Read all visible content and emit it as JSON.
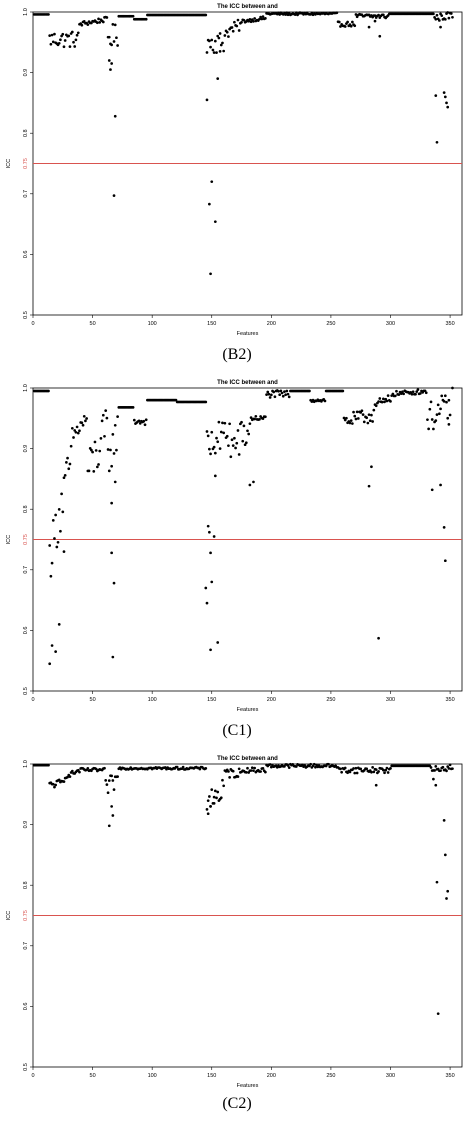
{
  "chart_data": [
    {
      "type": "scatter",
      "panel_label": "(B2)",
      "title": "The ICC between      and",
      "xlabel": "Features",
      "ylabel": "ICC",
      "xlim": [
        0,
        360
      ],
      "ylim": [
        0.5,
        1.0
      ],
      "xticks": [
        0,
        50,
        100,
        150,
        200,
        250,
        300,
        350
      ],
      "yticks": [
        0.5,
        0.6,
        0.7,
        0.8,
        0.9,
        1.0
      ],
      "ytick_labels": [
        "0.5",
        "0.6",
        "0.7",
        "0.8",
        "0.9",
        "1.0"
      ],
      "reference_line": {
        "y": 0.75,
        "label": "0.75",
        "color": "#d9534f"
      },
      "marker_color": "#000000",
      "segments": [
        {
          "x": [
            1,
            13
          ],
          "y": [
            0.996,
            0.996
          ]
        },
        {
          "x": [
            14,
            38
          ],
          "y": [
            0.955,
            0.955
          ],
          "jitter": 0.014
        },
        {
          "x": [
            39,
            62
          ],
          "y": [
            0.98,
            0.988
          ],
          "jitter": 0.004
        },
        {
          "x": [
            63,
            71
          ],
          "y": [
            0.96,
            0.96
          ],
          "jitter": 0.02
        },
        {
          "x": [
            72,
            84
          ],
          "y": [
            0.993,
            0.993
          ]
        },
        {
          "x": [
            85,
            95
          ],
          "y": [
            0.988,
            0.988
          ]
        },
        {
          "x": [
            96,
            145
          ],
          "y": [
            0.995,
            0.995
          ]
        },
        {
          "x": [
            146,
            160
          ],
          "y": [
            0.95,
            0.95
          ],
          "jitter": 0.018
        },
        {
          "x": [
            161,
            175
          ],
          "y": [
            0.965,
            0.98
          ],
          "jitter": 0.01
        },
        {
          "x": [
            176,
            195
          ],
          "y": [
            0.985,
            0.99
          ],
          "jitter": 0.003
        },
        {
          "x": [
            196,
            255
          ],
          "y": [
            0.997,
            0.997
          ],
          "jitter": 0.002
        },
        {
          "x": [
            256,
            270
          ],
          "y": [
            0.98,
            0.98
          ],
          "jitter": 0.004
        },
        {
          "x": [
            271,
            298
          ],
          "y": [
            0.993,
            0.993
          ],
          "jitter": 0.004
        },
        {
          "x": [
            299,
            336
          ],
          "y": [
            0.997,
            0.997
          ]
        },
        {
          "x": [
            337,
            352
          ],
          "y": [
            0.99,
            0.995
          ],
          "jitter": 0.006
        }
      ],
      "points": [
        [
          64,
          0.92
        ],
        [
          65,
          0.905
        ],
        [
          66,
          0.915
        ],
        [
          69,
          0.828
        ],
        [
          68,
          0.697
        ],
        [
          146,
          0.855
        ],
        [
          148,
          0.683
        ],
        [
          150,
          0.72
        ],
        [
          153,
          0.654
        ],
        [
          149,
          0.568
        ],
        [
          155,
          0.89
        ],
        [
          157,
          0.935
        ],
        [
          338,
          0.862
        ],
        [
          339,
          0.785
        ],
        [
          345,
          0.867
        ],
        [
          346,
          0.86
        ],
        [
          347,
          0.85
        ],
        [
          348,
          0.843
        ],
        [
          342,
          0.975
        ],
        [
          291,
          0.96
        ],
        [
          282,
          0.975
        ],
        [
          287,
          0.985
        ]
      ]
    },
    {
      "type": "scatter",
      "panel_label": "(C1)",
      "title": "The ICC between      and",
      "xlabel": "Features",
      "ylabel": "ICC",
      "xlim": [
        0,
        360
      ],
      "ylim": [
        0.5,
        1.0
      ],
      "xticks": [
        0,
        50,
        100,
        150,
        200,
        250,
        300,
        350
      ],
      "yticks": [
        0.5,
        0.6,
        0.7,
        0.8,
        0.9,
        1.0
      ],
      "ytick_labels": [
        "0.5",
        "0.6",
        "0.7",
        "0.8",
        "0.9",
        "1.0"
      ],
      "reference_line": {
        "y": 0.75,
        "label": "0.75",
        "color": "#d9534f"
      },
      "marker_color": "#000000",
      "segments": [
        {
          "x": [
            1,
            13
          ],
          "y": [
            0.995,
            0.995
          ]
        },
        {
          "x": [
            14,
            32
          ],
          "y": [
            0.72,
            0.88
          ],
          "jitter": 0.04
        },
        {
          "x": [
            33,
            45
          ],
          "y": [
            0.92,
            0.95
          ],
          "jitter": 0.015
        },
        {
          "x": [
            46,
            62
          ],
          "y": [
            0.86,
            0.93
          ],
          "jitter": 0.04
        },
        {
          "x": [
            63,
            71
          ],
          "y": [
            0.88,
            0.93
          ],
          "jitter": 0.03
        },
        {
          "x": [
            72,
            84
          ],
          "y": [
            0.968,
            0.968
          ]
        },
        {
          "x": [
            85,
            95
          ],
          "y": [
            0.945,
            0.945
          ],
          "jitter": 0.006
        },
        {
          "x": [
            96,
            120
          ],
          "y": [
            0.98,
            0.98
          ]
        },
        {
          "x": [
            121,
            145
          ],
          "y": [
            0.977,
            0.977
          ]
        },
        {
          "x": [
            146,
            165
          ],
          "y": [
            0.9,
            0.93
          ],
          "jitter": 0.03
        },
        {
          "x": [
            166,
            182
          ],
          "y": [
            0.9,
            0.93
          ],
          "jitter": 0.03
        },
        {
          "x": [
            183,
            195
          ],
          "y": [
            0.95,
            0.95
          ],
          "jitter": 0.004
        },
        {
          "x": [
            196,
            215
          ],
          "y": [
            0.99,
            0.99
          ],
          "jitter": 0.006
        },
        {
          "x": [
            216,
            232
          ],
          "y": [
            0.995,
            0.995
          ]
        },
        {
          "x": [
            233,
            245
          ],
          "y": [
            0.98,
            0.98
          ],
          "jitter": 0.003
        },
        {
          "x": [
            246,
            260
          ],
          "y": [
            0.995,
            0.995
          ]
        },
        {
          "x": [
            261,
            285
          ],
          "y": [
            0.945,
            0.955
          ],
          "jitter": 0.012
        },
        {
          "x": [
            286,
            300
          ],
          "y": [
            0.97,
            0.98
          ],
          "jitter": 0.01
        },
        {
          "x": [
            301,
            330
          ],
          "y": [
            0.99,
            0.995
          ],
          "jitter": 0.004
        },
        {
          "x": [
            331,
            350
          ],
          "y": [
            0.95,
            0.97
          ],
          "jitter": 0.025
        }
      ],
      "points": [
        [
          14,
          0.545
        ],
        [
          16,
          0.575
        ],
        [
          19,
          0.565
        ],
        [
          22,
          0.61
        ],
        [
          26,
          0.73
        ],
        [
          66,
          0.728
        ],
        [
          66,
          0.81
        ],
        [
          68,
          0.678
        ],
        [
          67,
          0.556
        ],
        [
          69,
          0.845
        ],
        [
          145,
          0.67
        ],
        [
          146,
          0.645
        ],
        [
          147,
          0.772
        ],
        [
          148,
          0.762
        ],
        [
          149,
          0.728
        ],
        [
          150,
          0.68
        ],
        [
          152,
          0.755
        ],
        [
          155,
          0.58
        ],
        [
          149,
          0.568
        ],
        [
          153,
          0.855
        ],
        [
          182,
          0.84
        ],
        [
          185,
          0.845
        ],
        [
          282,
          0.838
        ],
        [
          284,
          0.87
        ],
        [
          290,
          0.587
        ],
        [
          335,
          0.832
        ],
        [
          342,
          0.84
        ],
        [
          345,
          0.77
        ],
        [
          346,
          0.715
        ],
        [
          349,
          0.94
        ],
        [
          352,
          1.0
        ]
      ]
    },
    {
      "type": "scatter",
      "panel_label": "(C2)",
      "title": "The ICC between      and",
      "xlabel": "Features",
      "ylabel": "ICC",
      "xlim": [
        0,
        360
      ],
      "ylim": [
        0.5,
        1.0
      ],
      "xticks": [
        0,
        50,
        100,
        150,
        200,
        250,
        300,
        350
      ],
      "yticks": [
        0.5,
        0.6,
        0.7,
        0.8,
        0.9,
        1.0
      ],
      "ytick_labels": [
        "0.5",
        "0.6",
        "0.7",
        "0.8",
        "0.9",
        "1.0"
      ],
      "reference_line": {
        "y": 0.75,
        "label": "0.75",
        "color": "#d9534f"
      },
      "marker_color": "#000000",
      "segments": [
        {
          "x": [
            1,
            13
          ],
          "y": [
            0.998,
            0.998
          ]
        },
        {
          "x": [
            14,
            26
          ],
          "y": [
            0.965,
            0.97
          ],
          "jitter": 0.006
        },
        {
          "x": [
            27,
            40
          ],
          "y": [
            0.98,
            0.99
          ],
          "jitter": 0.004
        },
        {
          "x": [
            41,
            60
          ],
          "y": [
            0.99,
            0.99
          ],
          "jitter": 0.003
        },
        {
          "x": [
            61,
            71
          ],
          "y": [
            0.96,
            0.975
          ],
          "jitter": 0.015
        },
        {
          "x": [
            72,
            145
          ],
          "y": [
            0.993,
            0.993
          ],
          "jitter": 0.002
        },
        {
          "x": [
            146,
            160
          ],
          "y": [
            0.94,
            0.955
          ],
          "jitter": 0.02
        },
        {
          "x": [
            161,
            175
          ],
          "y": [
            0.985,
            0.985
          ],
          "jitter": 0.008
        },
        {
          "x": [
            176,
            195
          ],
          "y": [
            0.99,
            0.99
          ],
          "jitter": 0.004
        },
        {
          "x": [
            196,
            255
          ],
          "y": [
            0.997,
            0.997
          ],
          "jitter": 0.003
        },
        {
          "x": [
            256,
            300
          ],
          "y": [
            0.99,
            0.99
          ],
          "jitter": 0.005
        },
        {
          "x": [
            301,
            333
          ],
          "y": [
            0.997,
            0.997
          ]
        },
        {
          "x": [
            334,
            352
          ],
          "y": [
            0.99,
            0.995
          ],
          "jitter": 0.005
        }
      ],
      "points": [
        [
          64,
          0.898
        ],
        [
          66,
          0.93
        ],
        [
          67,
          0.915
        ],
        [
          147,
          0.918
        ],
        [
          149,
          0.93
        ],
        [
          152,
          0.935
        ],
        [
          288,
          0.965
        ],
        [
          336,
          0.975
        ],
        [
          338,
          0.965
        ],
        [
          339,
          0.805
        ],
        [
          340,
          0.588
        ],
        [
          345,
          0.907
        ],
        [
          346,
          0.85
        ],
        [
          348,
          0.79
        ],
        [
          347,
          0.778
        ]
      ]
    }
  ]
}
